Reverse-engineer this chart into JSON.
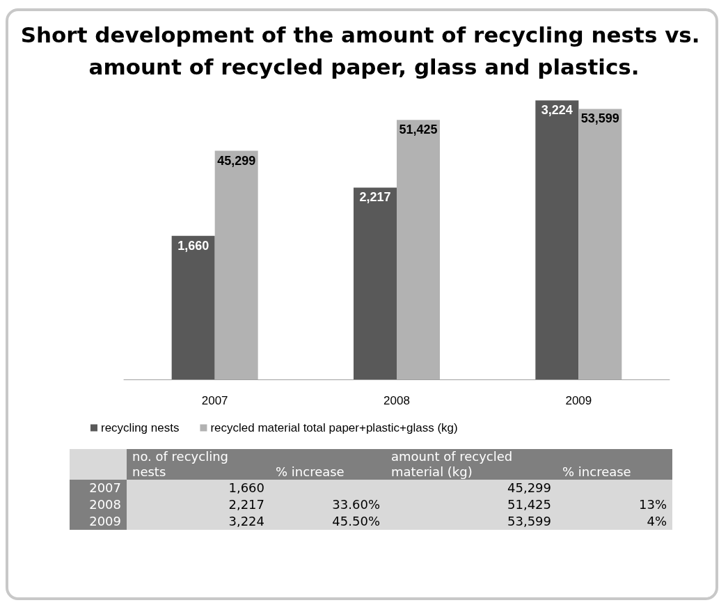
{
  "chart_data": [
    {
      "type": "bar",
      "title": "Short development of the amount of recycling nests vs. amount of recycled paper, glass and plastics.",
      "categories": [
        "2007",
        "2008",
        "2009"
      ],
      "series": [
        {
          "name": "recycling nests",
          "color": "#595959",
          "values": [
            1660,
            2217,
            3224
          ],
          "value_labels": [
            "1,660",
            "2,217",
            "3,224"
          ]
        },
        {
          "name": "recycled material total paper+plastic+glass (kg)",
          "color": "#b2b2b2",
          "values": [
            45299,
            51425,
            53599
          ],
          "value_labels": [
            "45,299",
            "51,425",
            "53,599"
          ],
          "axis": "y2"
        }
      ],
      "legend": "bottom",
      "tick_labels": "x",
      "grid": false
    },
    {
      "type": "other",
      "categories": [
        "2007",
        "2008",
        "2009"
      ],
      "annotations": [
        "no. of recycling nests",
        "% increase",
        "amount of recycled material (kg)",
        "% increase"
      ],
      "series": [
        {
          "values": [
            1660,
            2217,
            3224
          ],
          "value_labels": [
            "1,660",
            "2,217",
            "3,224"
          ]
        },
        {
          "values": [
            null,
            33.6,
            45.5
          ],
          "value_labels": [
            null,
            "33.60%",
            "45.50%"
          ]
        },
        {
          "values": [
            45299,
            51425,
            53599
          ],
          "value_labels": [
            "45,299",
            "51,425",
            "53,599"
          ]
        },
        {
          "values": [
            null,
            13,
            4
          ],
          "value_labels": [
            null,
            "13%",
            "4%"
          ]
        }
      ]
    }
  ]
}
